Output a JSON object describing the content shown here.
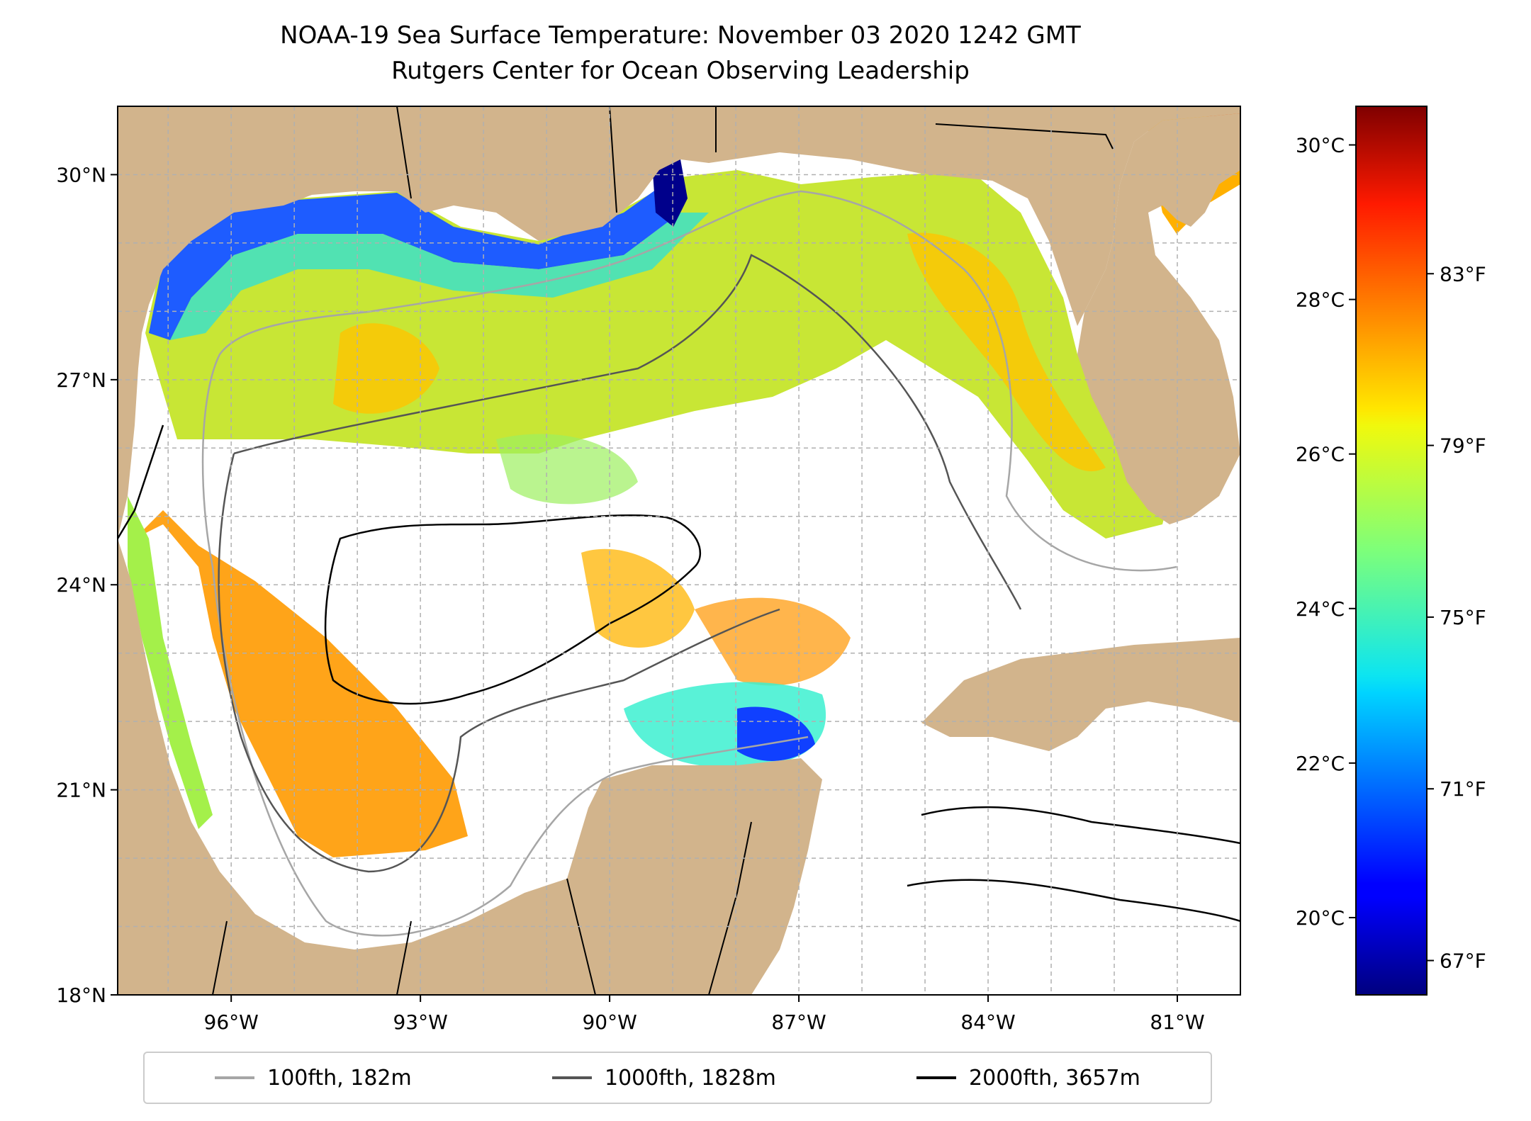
{
  "title": "NOAA-19 Sea Surface Temperature: November 03 2020 1242 GMT",
  "subtitle": "Rutgers Center for Ocean Observing Leadership",
  "map": {
    "extent": {
      "lon": [
        -97.8,
        -80.0
      ],
      "lat": [
        18.0,
        31.0
      ]
    },
    "land_color": "#d2b48c",
    "lat_ticks": [
      {
        "value": 30,
        "label": "30°N"
      },
      {
        "value": 27,
        "label": "27°N"
      },
      {
        "value": 24,
        "label": "24°N"
      },
      {
        "value": 21,
        "label": "21°N"
      },
      {
        "value": 18,
        "label": "18°N"
      }
    ],
    "lon_ticks": [
      {
        "value": -96,
        "label": "96°W"
      },
      {
        "value": -93,
        "label": "93°W"
      },
      {
        "value": -90,
        "label": "90°W"
      },
      {
        "value": -87,
        "label": "87°W"
      },
      {
        "value": -84,
        "label": "84°W"
      },
      {
        "value": -81,
        "label": "81°W"
      }
    ],
    "grid": true
  },
  "colorbar": {
    "colormap": "jet",
    "range_c": [
      19.0,
      30.5
    ],
    "celsius_ticks": [
      {
        "value": 30,
        "label": "30°C"
      },
      {
        "value": 28,
        "label": "28°C"
      },
      {
        "value": 26,
        "label": "26°C"
      },
      {
        "value": 24,
        "label": "24°C"
      },
      {
        "value": 22,
        "label": "22°C"
      },
      {
        "value": 20,
        "label": "20°C"
      }
    ],
    "fahrenheit_ticks": [
      {
        "value": 83,
        "label": "83°F"
      },
      {
        "value": 79,
        "label": "79°F"
      },
      {
        "value": 75,
        "label": "75°F"
      },
      {
        "value": 71,
        "label": "71°F"
      },
      {
        "value": 67,
        "label": "67°F"
      }
    ]
  },
  "legend": {
    "items": [
      {
        "label": "100fth, 182m",
        "color": "#a6a6a6"
      },
      {
        "label": "1000fth, 1828m",
        "color": "#555555"
      },
      {
        "label": "2000fth, 3657m",
        "color": "#000000"
      }
    ]
  }
}
